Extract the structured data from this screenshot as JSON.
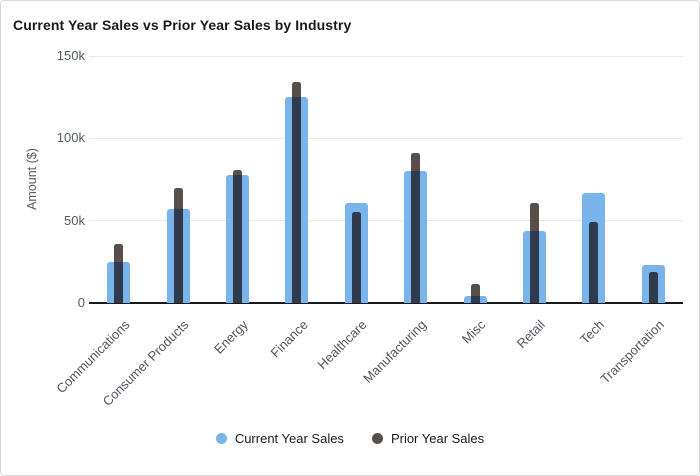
{
  "chart_data": {
    "type": "bar",
    "variant": "bar-over-bar",
    "title": "Current Year Sales vs Prior Year Sales by Industry",
    "xlabel": "",
    "ylabel": "Amount ($)",
    "ylim": [
      0,
      150000
    ],
    "grid": "horizontal",
    "legend_position": "bottom",
    "yticks": [
      {
        "label": "150k",
        "value": 150000
      },
      {
        "label": "100k",
        "value": 100000
      },
      {
        "label": "50k",
        "value": 50000
      },
      {
        "label": "0",
        "value": 0
      }
    ],
    "categories": [
      "Communications",
      "Consumer Products",
      "Energy",
      "Finance",
      "Healthcare",
      "Manufacturing",
      "Misc",
      "Retail",
      "Tech",
      "Transportation"
    ],
    "series": [
      {
        "name": "Current Year Sales",
        "color": "#79b5ea",
        "values": [
          25000,
          57000,
          78000,
          125000,
          61000,
          80000,
          4000,
          44000,
          67000,
          23000
        ]
      },
      {
        "name": "Prior Year Sales",
        "color": "#584f4b",
        "overlap_color": "#2f3a4c",
        "values": [
          36000,
          70000,
          81000,
          134000,
          55000,
          91000,
          11500,
          61000,
          49000,
          19000
        ]
      }
    ]
  },
  "colors": {
    "title_text": "#16191f",
    "axis_line": "#16191f",
    "gridline": "#e9e9e9",
    "tick_text": "#545b64",
    "frame_border": "#d9d9d9"
  }
}
